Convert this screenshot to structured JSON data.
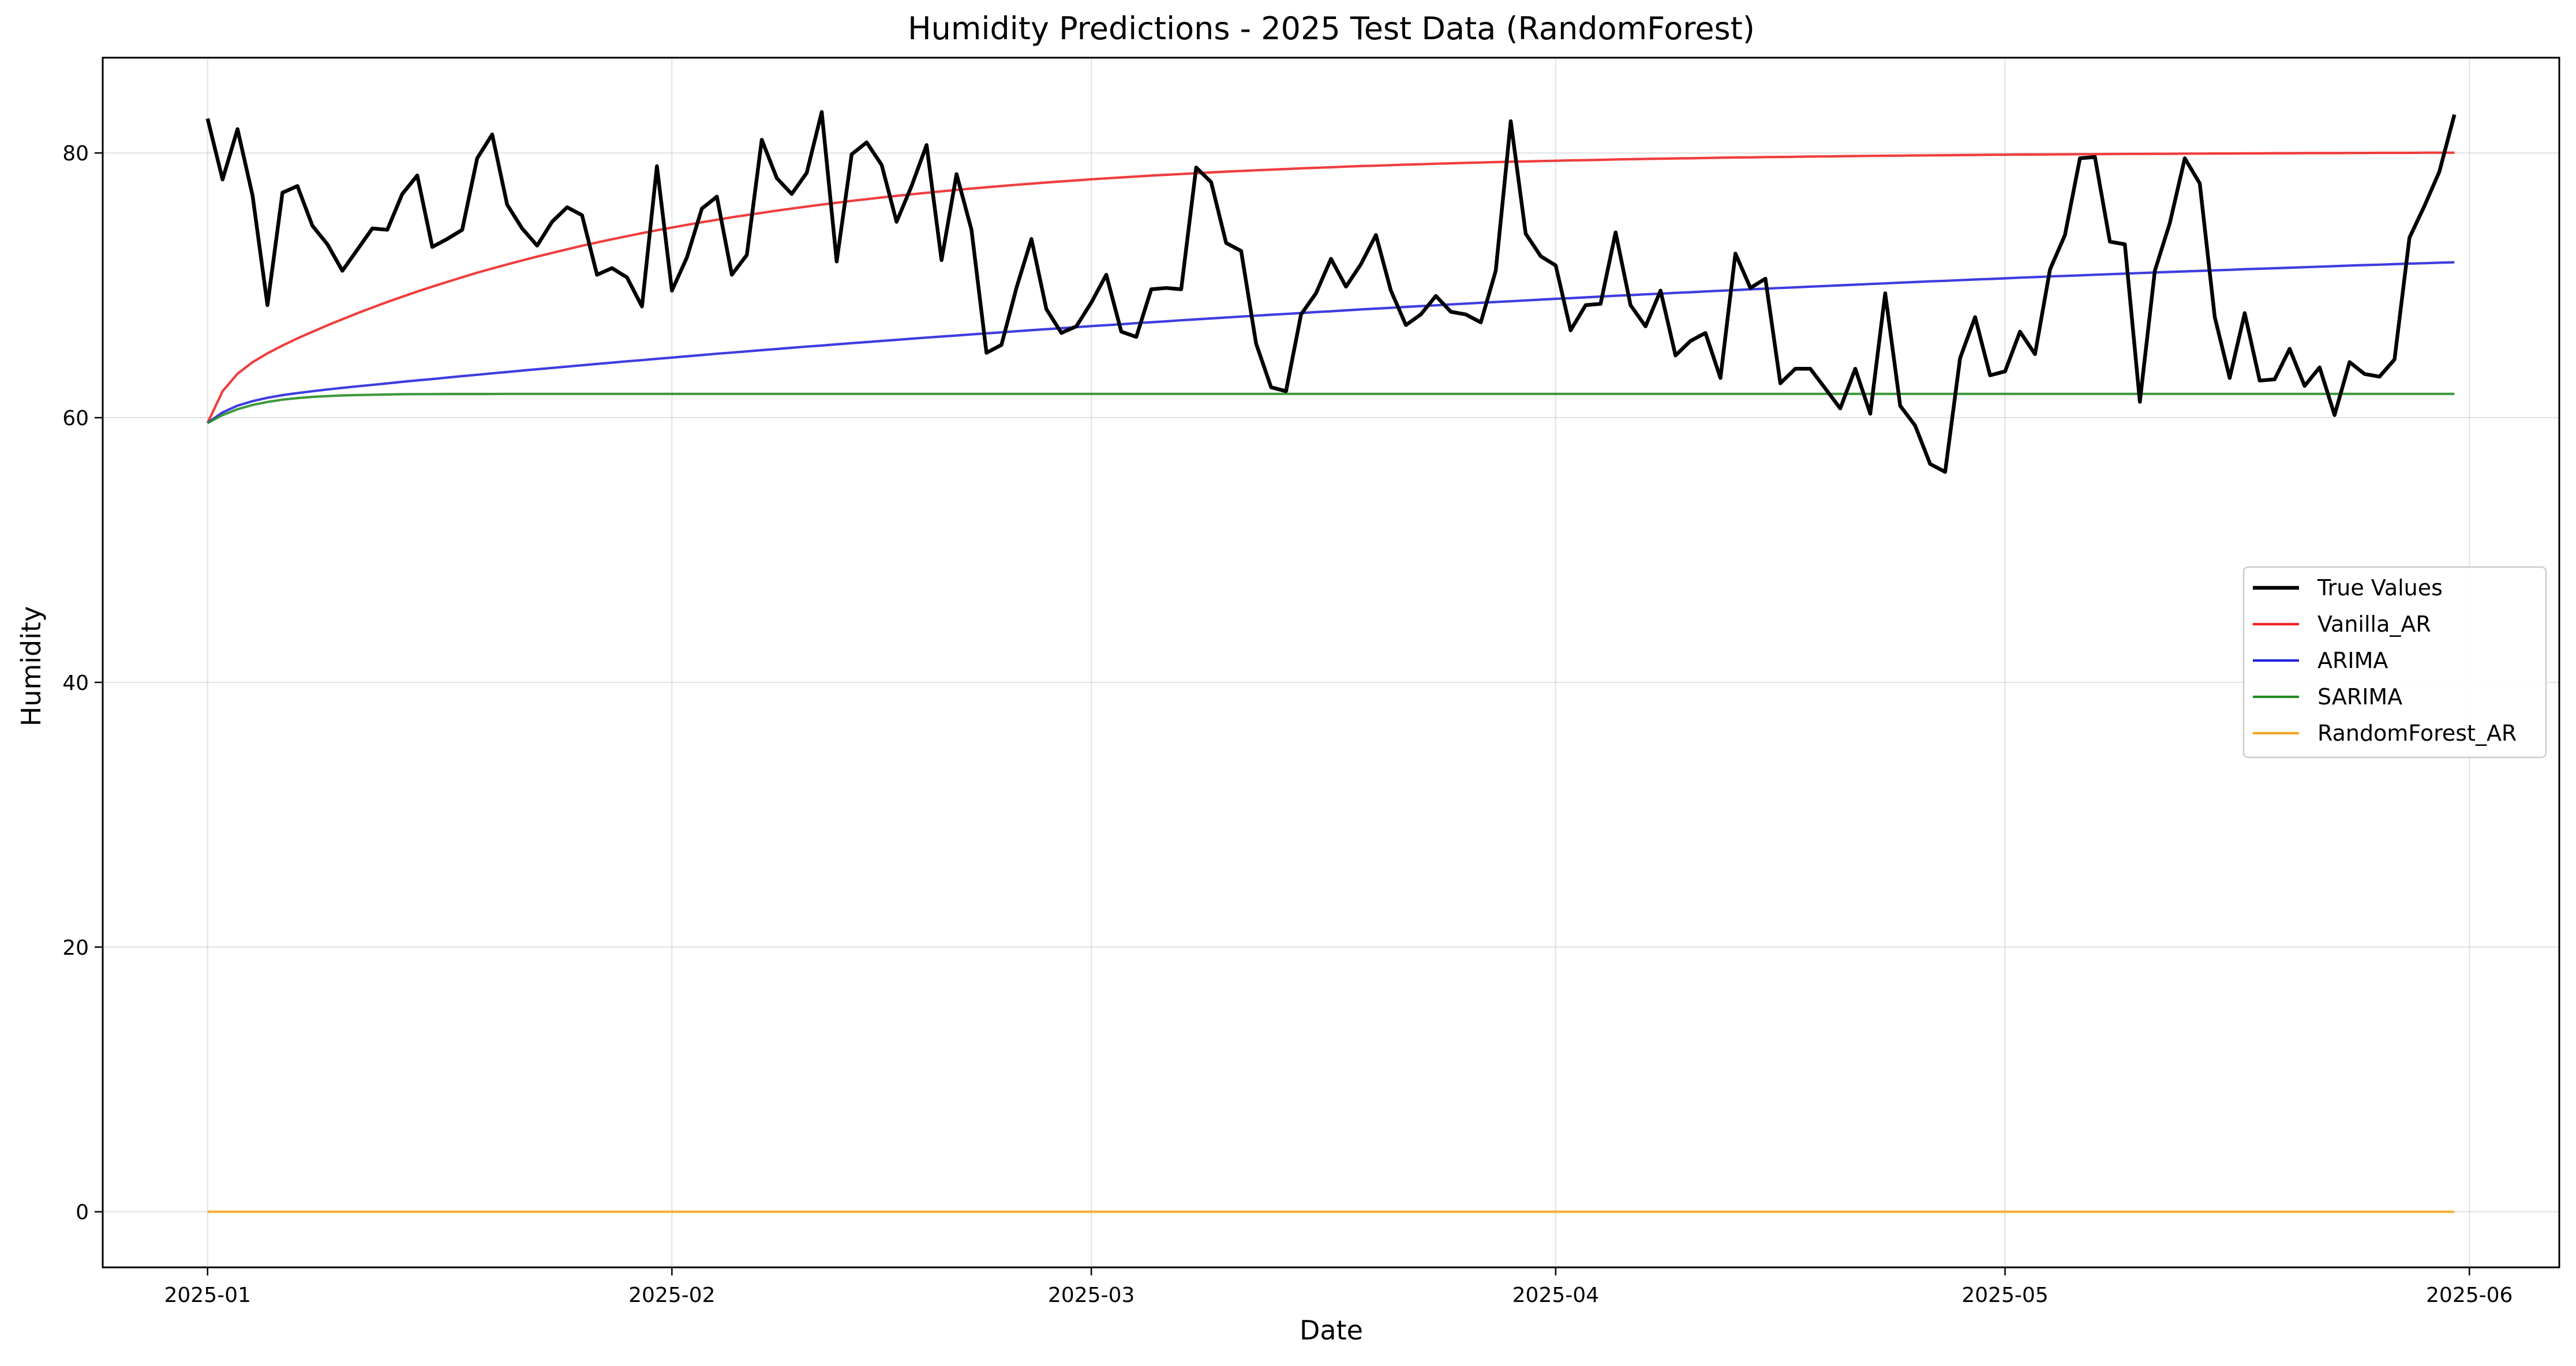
{
  "chart_data": {
    "type": "line",
    "title": "Humidity Predictions - 2025 Test Data (RandomForest)",
    "xlabel": "Date",
    "ylabel": "Humidity",
    "x_start": "2025-01-01",
    "x_end": "2025-05-31",
    "xlim": [
      "2024-12-25",
      "2025-06-07"
    ],
    "ylim": [
      -4.2,
      87.2
    ],
    "xticks": [
      {
        "date": "2025-01-01",
        "label": "2025-01"
      },
      {
        "date": "2025-02-01",
        "label": "2025-02"
      },
      {
        "date": "2025-03-01",
        "label": "2025-03"
      },
      {
        "date": "2025-04-01",
        "label": "2025-04"
      },
      {
        "date": "2025-05-01",
        "label": "2025-05"
      },
      {
        "date": "2025-06-01",
        "label": "2025-06"
      }
    ],
    "yticks": [
      0,
      20,
      40,
      60,
      80
    ],
    "grid": true,
    "legend_position": "center-right",
    "series": [
      {
        "name": "True Values",
        "color": "#000000",
        "values": [
          82.6,
          78.0,
          81.8,
          76.8,
          68.5,
          77.0,
          77.5,
          74.5,
          73.1,
          71.1,
          72.7,
          74.3,
          74.2,
          76.9,
          78.3,
          72.9,
          73.5,
          74.2,
          79.6,
          81.4,
          76.1,
          74.3,
          73.0,
          74.8,
          75.9,
          75.3,
          70.8,
          71.3,
          70.6,
          68.4,
          79.0,
          69.6,
          72.1,
          75.8,
          76.7,
          70.8,
          72.3,
          81.0,
          78.1,
          76.9,
          78.5,
          83.1,
          71.8,
          79.9,
          80.8,
          79.1,
          74.8,
          77.5,
          80.6,
          71.9,
          78.4,
          74.2,
          64.9,
          65.5,
          69.8,
          73.5,
          68.2,
          66.4,
          66.9,
          68.7,
          70.8,
          66.5,
          66.1,
          69.7,
          69.8,
          69.7,
          78.9,
          77.8,
          73.2,
          72.6,
          65.6,
          62.3,
          62.0,
          67.8,
          69.4,
          72.0,
          69.9,
          71.6,
          73.8,
          69.6,
          67.0,
          67.8,
          69.2,
          68.0,
          67.8,
          67.2,
          71.1,
          82.4,
          73.9,
          72.2,
          71.5,
          66.6,
          68.5,
          68.6,
          74.0,
          68.5,
          66.9,
          69.6,
          64.7,
          65.8,
          66.4,
          63.0,
          72.4,
          69.8,
          70.5,
          62.6,
          63.7,
          63.7,
          62.2,
          60.7,
          63.7,
          60.3,
          69.4,
          60.9,
          59.4,
          56.5,
          55.9,
          64.5,
          67.6,
          63.2,
          63.5,
          66.5,
          64.8,
          71.2,
          73.8,
          79.6,
          79.7,
          73.3,
          73.1,
          61.2,
          71.1,
          74.7,
          79.6,
          77.7,
          67.6,
          63.0,
          67.9,
          62.8,
          62.9,
          65.2,
          62.4,
          63.8,
          60.2,
          64.2,
          63.3,
          63.1,
          64.4,
          73.6,
          76.0,
          78.6,
          82.9
        ],
        "line_width": 6.5
      },
      {
        "name": "Vanilla_AR",
        "color": "#ee2222",
        "model": {
          "start": 59.6,
          "asymptote": 77.1,
          "rate": 0.036,
          "fast_amp": 3.0,
          "fast_rate": 0.9
        },
        "line_width": 4.2
      },
      {
        "name": "ARIMA",
        "color": "#2222dd",
        "model": {
          "start": 59.6,
          "asymptote": 74.5,
          "rate": 0.0082,
          "fast_amp": 1.6,
          "fast_rate": 0.55
        },
        "line_width": 4.2
      },
      {
        "name": "SARIMA",
        "color": "#228b22",
        "model": {
          "start": 59.6,
          "asymptote": 61.8,
          "rate": 0.32
        },
        "line_width": 4.2
      },
      {
        "name": "RandomForest_AR",
        "color": "#f5a623",
        "constant": 0,
        "line_width": 4.2
      }
    ]
  }
}
